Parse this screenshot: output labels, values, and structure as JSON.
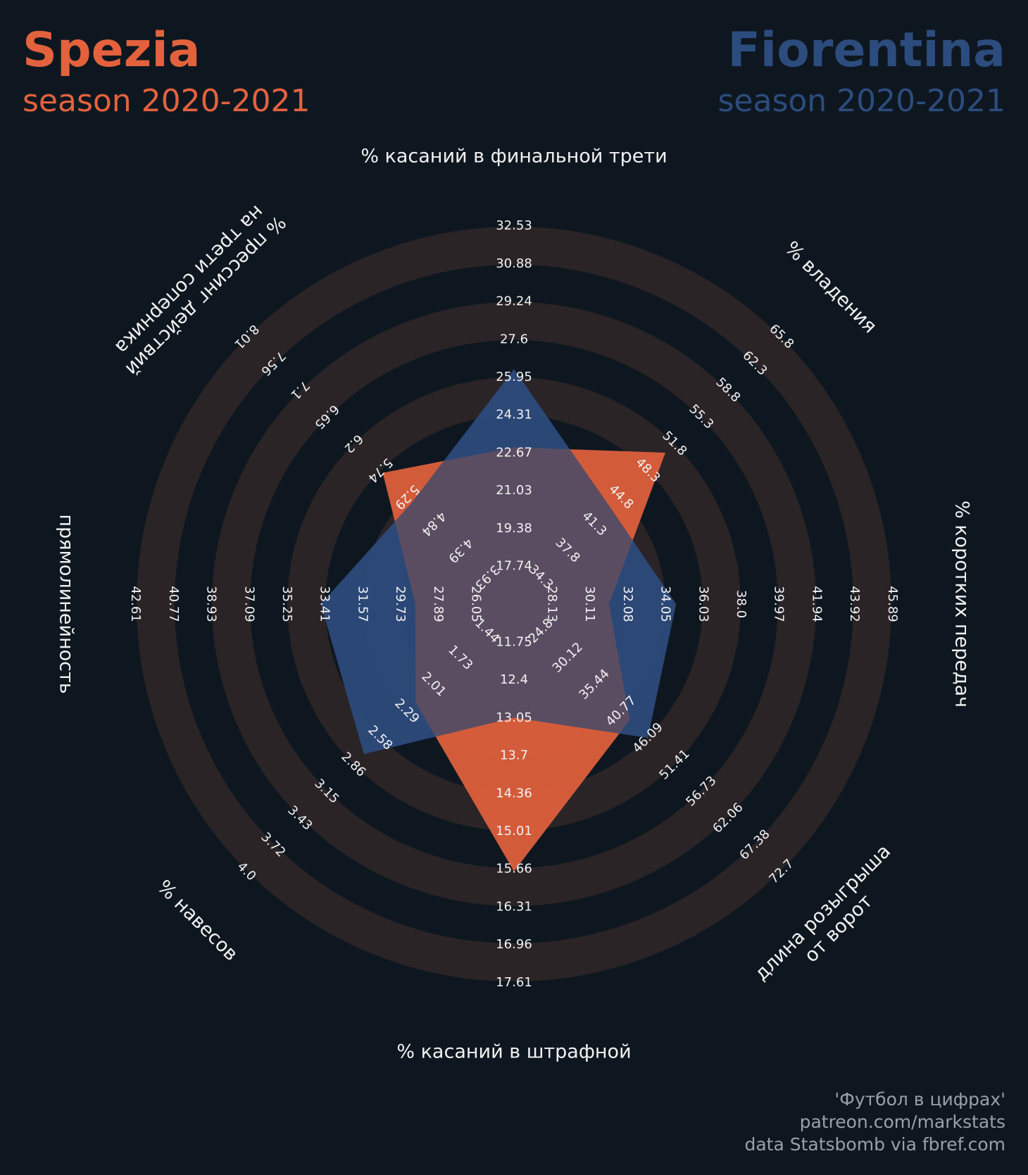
{
  "header": {
    "left_team": "Spezia",
    "left_season": "season 2020-2021",
    "right_team": "Fiorentina",
    "right_season": "season 2020-2021"
  },
  "colors": {
    "background": "#0e1720",
    "ring": "#2a2426",
    "spezia": "#e3623d",
    "fiorentina": "#2c4c7e",
    "overlap": "#5a4d62",
    "text": "#f2f2f2"
  },
  "chart_data": {
    "type": "radar",
    "title": "",
    "params": [
      "% касаний в финальной трети",
      "% владения",
      "% коротких передач",
      "длина розыгрыша\nот ворот",
      "% касаний в штрафной",
      "% навесов",
      "прямолинейность",
      "% прессинг действий\nна трети соперника"
    ],
    "ranges": [
      [
        "17.74",
        "19.38",
        "21.03",
        "22.67",
        "24.31",
        "25.95",
        "27.6",
        "29.24",
        "30.88",
        "32.53"
      ],
      [
        "34.3",
        "37.8",
        "41.3",
        "44.8",
        "48.3",
        "51.8",
        "55.3",
        "58.8",
        "62.3",
        "65.8"
      ],
      [
        "28.13",
        "30.11",
        "32.08",
        "34.05",
        "36.03",
        "38.0",
        "39.97",
        "41.94",
        "43.92",
        "45.89"
      ],
      [
        "24.8",
        "30.12",
        "35.44",
        "40.77",
        "46.09",
        "51.41",
        "56.73",
        "62.06",
        "67.38",
        "72.7"
      ],
      [
        "11.75",
        "12.4",
        "13.05",
        "13.7",
        "14.36",
        "15.01",
        "15.66",
        "16.31",
        "16.96",
        "17.61"
      ],
      [
        "1.44",
        "1.73",
        "2.01",
        "2.29",
        "2.58",
        "2.86",
        "3.15",
        "3.43",
        "3.72",
        "4.0"
      ],
      [
        "26.05",
        "27.89",
        "29.73",
        "31.57",
        "33.41",
        "35.25",
        "37.09",
        "38.93",
        "40.77",
        "42.61"
      ],
      [
        "3.93",
        "4.39",
        "4.84",
        "5.29",
        "5.74",
        "6.2",
        "6.65",
        "7.1",
        "7.56",
        "8.01"
      ]
    ],
    "series": [
      {
        "name": "Spezia",
        "values": [
          22.9,
          50.6,
          31.1,
          42.5,
          15.7,
          2.2,
          29.0,
          5.7
        ]
      },
      {
        "name": "Fiorentina",
        "values": [
          26.3,
          43.4,
          34.6,
          46.1,
          13.05,
          2.75,
          33.6,
          5.2
        ]
      }
    ],
    "grid": "concentric rings",
    "legend": "team names in top-left and top-right corners"
  },
  "credits": [
    "'Футбол в цифрах'",
    "patreon.com/markstats",
    "data Statsbomb via fbref.com"
  ]
}
